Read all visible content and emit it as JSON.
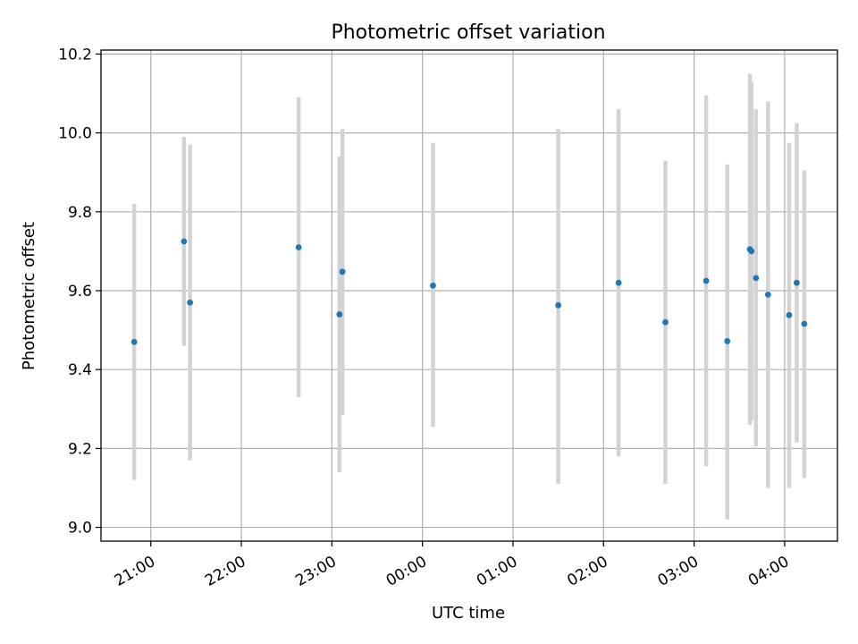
{
  "chart_data": {
    "type": "scatter",
    "title": "Photometric offset variation",
    "xlabel": "UTC time",
    "ylabel": "Photometric offset",
    "xlim": [
      "20:27",
      "04:35"
    ],
    "ylim": [
      8.965,
      10.21
    ],
    "x_ticks": [
      "21:00",
      "22:00",
      "23:00",
      "00:00",
      "01:00",
      "02:00",
      "03:00",
      "04:00"
    ],
    "y_ticks": [
      "9.0",
      "9.2",
      "9.4",
      "9.6",
      "9.8",
      "10.0",
      "10.2"
    ],
    "grid": true,
    "colors": {
      "point": "#1f77b4",
      "errorbar": "#d3d3d3",
      "grid": "#b0b0b0"
    },
    "points": [
      {
        "x": "20:49",
        "y": 9.47,
        "err_low": 9.12,
        "err_high": 9.82
      },
      {
        "x": "21:22",
        "y": 9.725,
        "err_low": 9.46,
        "err_high": 9.99
      },
      {
        "x": "21:26",
        "y": 9.57,
        "err_low": 9.17,
        "err_high": 9.97
      },
      {
        "x": "22:38",
        "y": 9.71,
        "err_low": 9.33,
        "err_high": 10.09
      },
      {
        "x": "23:05",
        "y": 9.54,
        "err_low": 9.14,
        "err_high": 9.94
      },
      {
        "x": "23:07",
        "y": 9.648,
        "err_low": 9.285,
        "err_high": 10.01
      },
      {
        "x": "00:07",
        "y": 9.613,
        "err_low": 9.255,
        "err_high": 9.975
      },
      {
        "x": "01:30",
        "y": 9.563,
        "err_low": 9.11,
        "err_high": 10.01
      },
      {
        "x": "02:10",
        "y": 9.62,
        "err_low": 9.18,
        "err_high": 10.06
      },
      {
        "x": "02:41",
        "y": 9.52,
        "err_low": 9.11,
        "err_high": 9.93
      },
      {
        "x": "03:08",
        "y": 9.625,
        "err_low": 9.155,
        "err_high": 10.095
      },
      {
        "x": "03:22",
        "y": 9.472,
        "err_low": 9.02,
        "err_high": 9.92
      },
      {
        "x": "03:37",
        "y": 9.705,
        "err_low": 9.26,
        "err_high": 10.15
      },
      {
        "x": "03:38",
        "y": 9.7,
        "err_low": 9.27,
        "err_high": 10.13
      },
      {
        "x": "03:41",
        "y": 9.632,
        "err_low": 9.205,
        "err_high": 10.06
      },
      {
        "x": "03:49",
        "y": 9.59,
        "err_low": 9.1,
        "err_high": 10.08
      },
      {
        "x": "04:03",
        "y": 9.538,
        "err_low": 9.1,
        "err_high": 9.975
      },
      {
        "x": "04:08",
        "y": 9.62,
        "err_low": 9.215,
        "err_high": 10.025
      },
      {
        "x": "04:13",
        "y": 9.516,
        "err_low": 9.125,
        "err_high": 9.905
      }
    ]
  }
}
